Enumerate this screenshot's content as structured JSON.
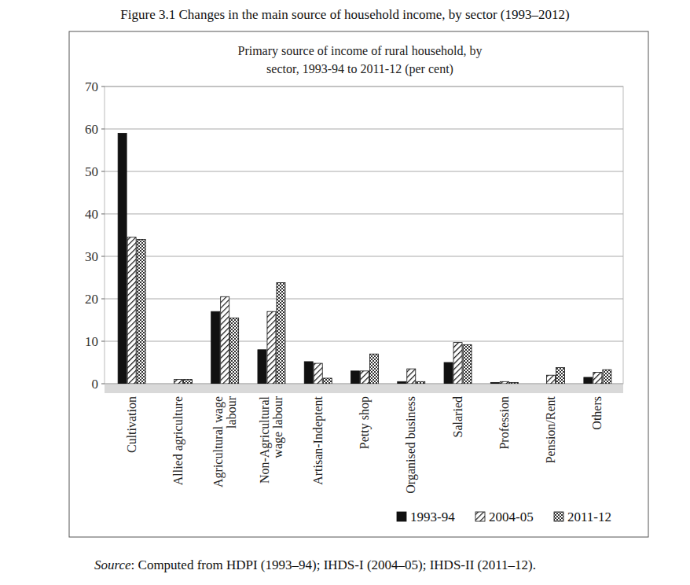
{
  "caption": "Figure 3.1 Changes in the main source of household income, by sector (1993–2012)",
  "source": "Source: Computed from HDPI (1993–94); IHDS-I (2004–05); IHDS-II (2011–12).",
  "chart_data": {
    "type": "bar",
    "title": "Primary source of income of rural household, by sector, 1993-94 to 2011-12 (per cent)",
    "categories": [
      "Cultivation",
      "Allied agriculture",
      "Agricultural wage labour",
      "Non-Agricultural wage labour",
      "Artisan-Indeptent",
      "Petty shop",
      "Organised business",
      "Salaried",
      "Profession",
      "Pension/Rent",
      "Others"
    ],
    "series": [
      {
        "name": "1993-94",
        "color": "#111111",
        "values": [
          59,
          0,
          17,
          8,
          5.2,
          3,
          0.5,
          5,
          0.3,
          0,
          1.5
        ]
      },
      {
        "name": "2004-05",
        "color": "#111111",
        "values": [
          34.5,
          1,
          20.5,
          17,
          4.8,
          3,
          3.5,
          9.7,
          0.5,
          2,
          2.7
        ]
      },
      {
        "name": "2011-12",
        "color": "#111111",
        "values": [
          34,
          1,
          15.5,
          23.8,
          1.3,
          7,
          0.5,
          9.2,
          0.3,
          3.8,
          3.3
        ]
      }
    ],
    "ylim": [
      0,
      70
    ],
    "yticks": [
      0,
      10,
      20,
      30,
      40,
      50,
      60,
      70
    ],
    "grid": true,
    "legend": "bottom"
  }
}
